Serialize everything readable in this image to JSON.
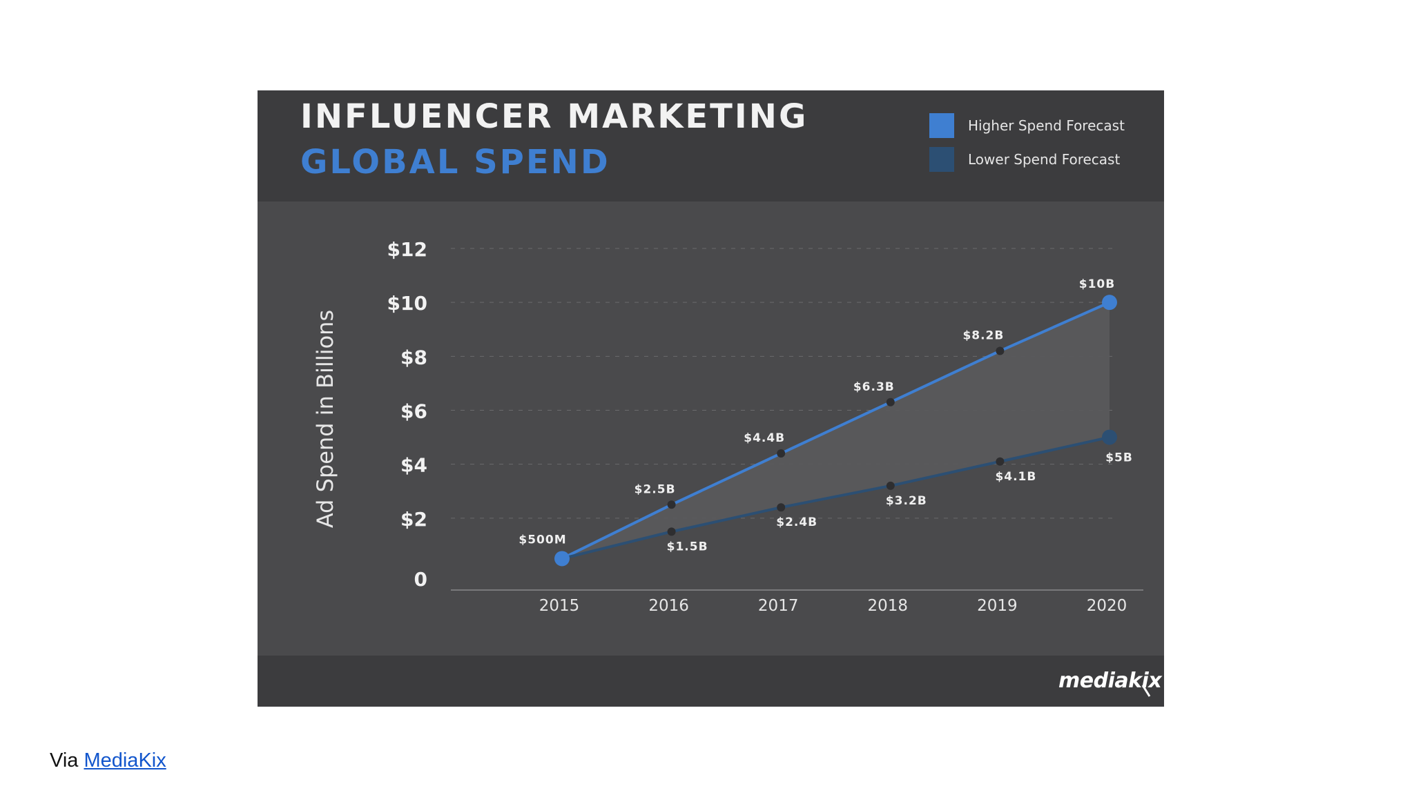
{
  "colors": {
    "higher": "#3f7fd1",
    "lower": "#2c4f73",
    "band": "#5a5a5c",
    "grid": "#6a6a6c",
    "axis_text": "#f2f2f2",
    "label_text": "#f0f0f0",
    "point": "#2e2e30"
  },
  "caption": {
    "prefix": "Via ",
    "link_text": "MediaKix"
  },
  "brand": {
    "logo_text": "mediakix"
  },
  "chart_data": {
    "type": "line",
    "title": "INFLUENCER MARKETING",
    "subtitle": "GLOBAL SPEND",
    "ylabel": "Ad Spend in Billions",
    "xlabel": "",
    "ylim": [
      0,
      12
    ],
    "grid": true,
    "legend_position": "top-right",
    "y_ticks": [
      0,
      2,
      4,
      6,
      8,
      10,
      12
    ],
    "y_tick_labels": [
      "0",
      "$2",
      "$4",
      "$6",
      "$8",
      "$10",
      "$12"
    ],
    "x": [
      "2015",
      "2016",
      "2017",
      "2018",
      "2019",
      "2020"
    ],
    "series": [
      {
        "name": "Higher Spend Forecast",
        "values": [
          0.5,
          2.5,
          4.4,
          6.3,
          8.2,
          10
        ],
        "labels": [
          "$500M",
          "$2.5B",
          "$4.4B",
          "$6.3B",
          "$8.2B",
          "$10B"
        ]
      },
      {
        "name": "Lower Spend Forecast",
        "values": [
          0.5,
          1.5,
          2.4,
          3.2,
          4.1,
          5
        ],
        "labels": [
          "",
          "$1.5B",
          "$2.4B",
          "$3.2B",
          "$4.1B",
          "$5B"
        ]
      }
    ]
  }
}
